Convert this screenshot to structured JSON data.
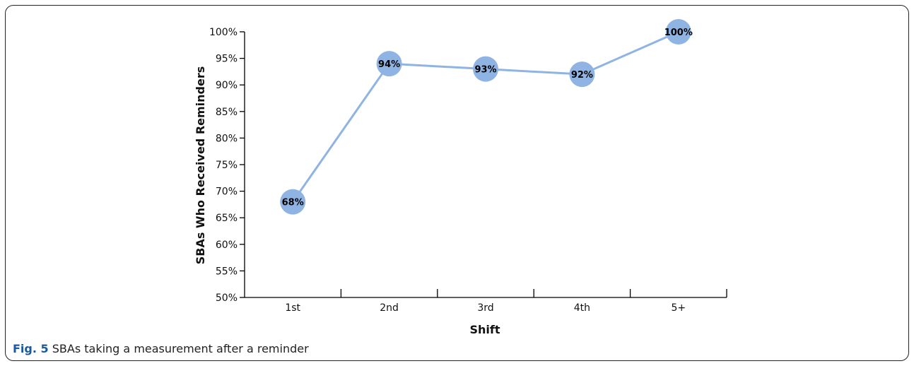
{
  "caption": {
    "label": "Fig. 5",
    "text": "SBAs taking a measurement after a reminder"
  },
  "chart_data": {
    "type": "line",
    "categories": [
      "1st",
      "2nd",
      "3rd",
      "4th",
      "5+"
    ],
    "values": [
      68,
      94,
      93,
      92,
      100
    ],
    "data_labels": [
      "68%",
      "94%",
      "93%",
      "92%",
      "100%"
    ],
    "xlabel": "Shift",
    "ylabel": "SBAs Who Received Reminders",
    "ylim": [
      50,
      100
    ],
    "yticks": [
      50,
      55,
      60,
      65,
      70,
      75,
      80,
      85,
      90,
      95,
      100
    ],
    "ytick_labels": [
      "50%",
      "55%",
      "60%",
      "65%",
      "70%",
      "75%",
      "80%",
      "85%",
      "90%",
      "95%",
      "100%"
    ],
    "grid": false,
    "line_color": "#8fb4e3",
    "marker_color": "#8fb4e3"
  }
}
